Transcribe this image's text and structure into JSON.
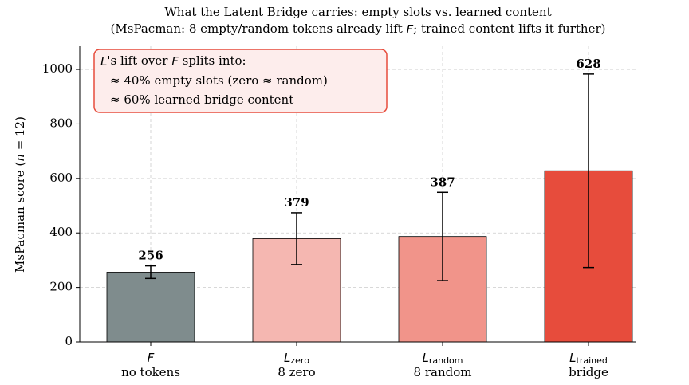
{
  "chart_data": {
    "type": "bar",
    "title": "What the Latent Bridge carries: empty slots vs. learned content",
    "subtitle": [
      "(MsPacman: 8 empty/random tokens already lift ",
      "F",
      "; trained content lifts it further)"
    ],
    "y_label": [
      "MsPacman score (",
      "n",
      " = 12)"
    ],
    "categories": [
      {
        "symbol": "F",
        "description": "no tokens"
      },
      {
        "symbol": "L",
        "subscript": "zero",
        "description": "8 zero"
      },
      {
        "symbol": "L",
        "subscript": "random",
        "description": "8 random"
      },
      {
        "symbol": "L",
        "subscript": "trained",
        "description": "bridge"
      }
    ],
    "values": [
      256,
      379,
      387,
      628
    ],
    "errors": [
      23,
      95,
      162,
      355
    ],
    "colors": [
      "#7f8c8d",
      "#f5b7b1",
      "#f1948a",
      "#e74c3c"
    ],
    "ylim": [
      0,
      1085
    ],
    "yticks": [
      0,
      200,
      400,
      600,
      800,
      1000
    ],
    "grid": true,
    "annotation": [
      [
        "L",
        "'s lift over ",
        "F",
        " splits into:"
      ],
      [
        "≈ 40% empty slots (zero ≈ random)"
      ],
      [
        "≈ 60% learned bridge content"
      ]
    ]
  }
}
